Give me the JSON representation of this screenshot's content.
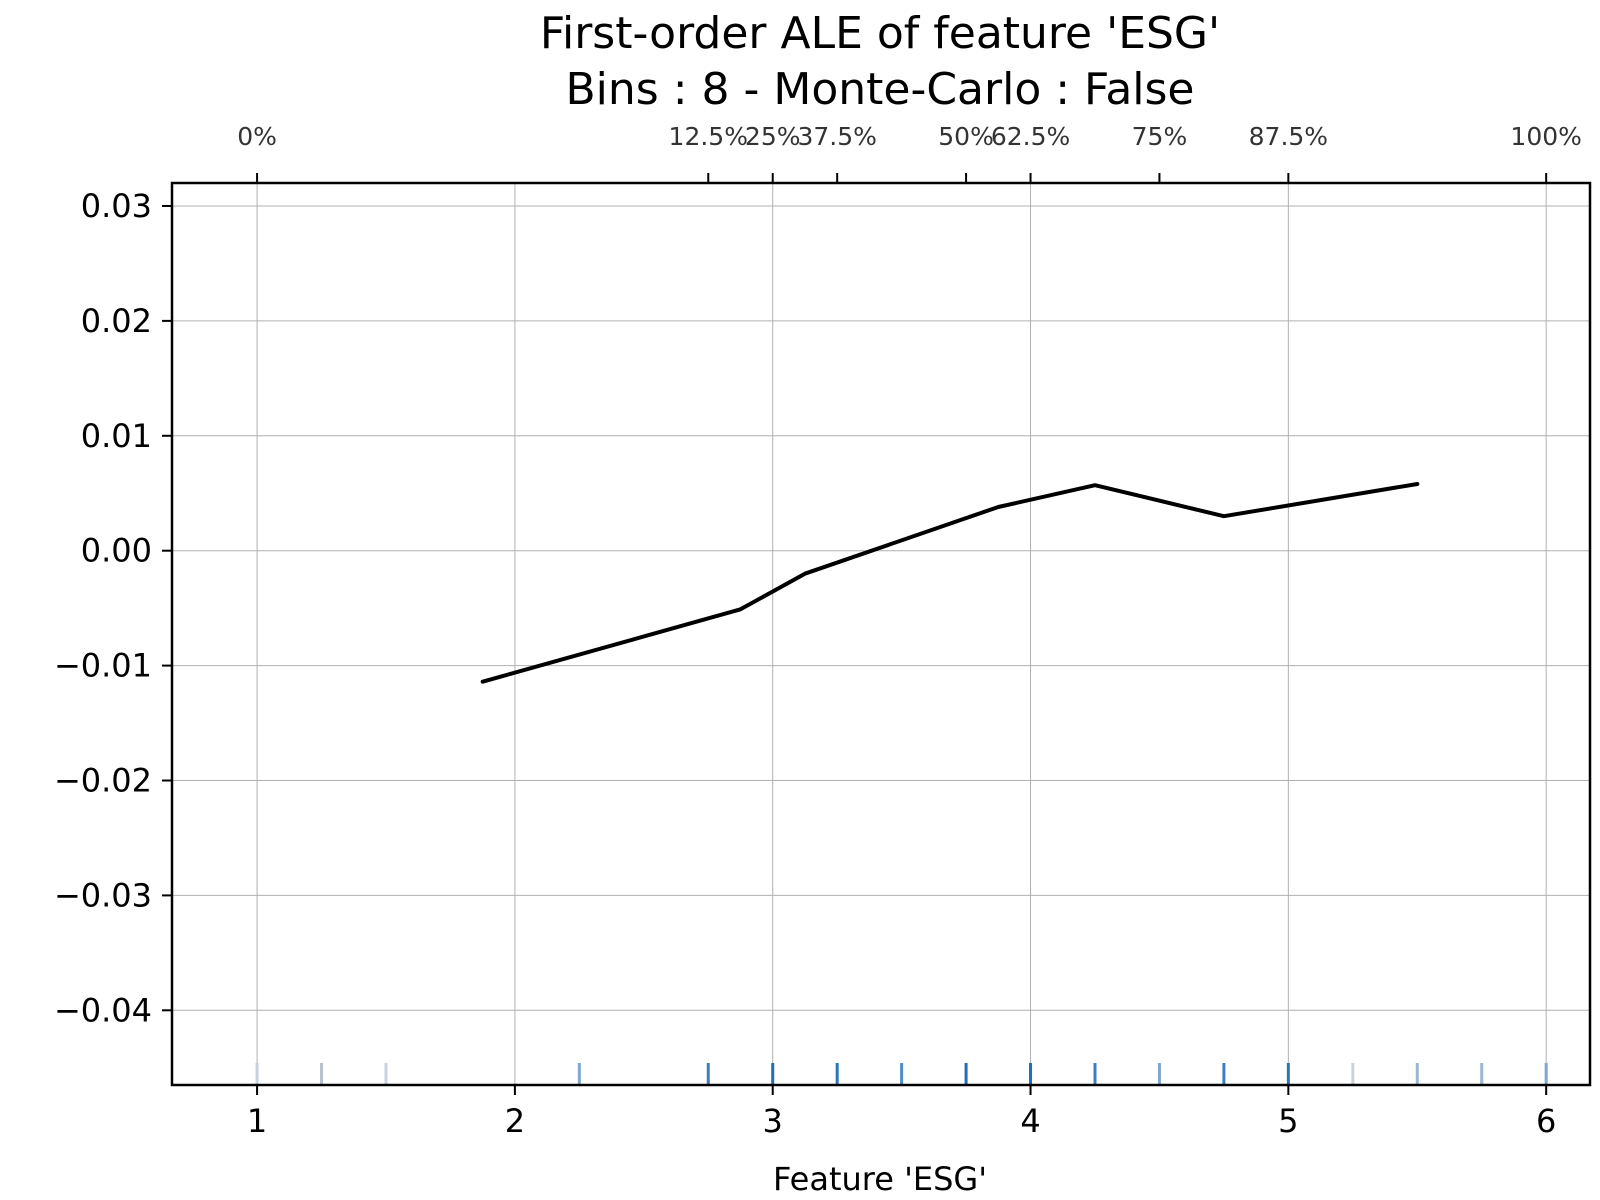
{
  "chart_data": {
    "type": "line",
    "title": "First-order ALE of feature 'ESG'",
    "subtitle": "Bins : 8 - Monte-Carlo : False",
    "xlabel": "Feature 'ESG'",
    "ylabel": "",
    "xlim": [
      0.67,
      6.17
    ],
    "ylim": [
      -0.0465,
      0.032
    ],
    "grid": true,
    "x_ticks": [
      {
        "value": 1,
        "label": "1"
      },
      {
        "value": 2,
        "label": "2"
      },
      {
        "value": 3,
        "label": "3"
      },
      {
        "value": 4,
        "label": "4"
      },
      {
        "value": 5,
        "label": "5"
      },
      {
        "value": 6,
        "label": "6"
      }
    ],
    "y_ticks": [
      {
        "value": 0.03,
        "label": "0.03"
      },
      {
        "value": 0.02,
        "label": "0.02"
      },
      {
        "value": 0.01,
        "label": "0.01"
      },
      {
        "value": 0.0,
        "label": "0.00"
      },
      {
        "value": -0.01,
        "label": "−0.01"
      },
      {
        "value": -0.02,
        "label": "−0.02"
      },
      {
        "value": -0.03,
        "label": "−0.03"
      },
      {
        "value": -0.04,
        "label": "−0.04"
      }
    ],
    "quantile_ticks": [
      {
        "value": 1.0,
        "label": "0%"
      },
      {
        "value": 2.75,
        "label": "12.5%"
      },
      {
        "value": 3.0,
        "label": "25%"
      },
      {
        "value": 3.25,
        "label": "37.5%"
      },
      {
        "value": 3.75,
        "label": "50%"
      },
      {
        "value": 4.0,
        "label": "62.5%"
      },
      {
        "value": 4.5,
        "label": "75%"
      },
      {
        "value": 5.0,
        "label": "87.5%"
      },
      {
        "value": 6.0,
        "label": "100%"
      }
    ],
    "series": [
      {
        "x": [
          1.875,
          2.875,
          3.125,
          3.875,
          4.25,
          4.75,
          5.5
        ],
        "values": [
          -0.0114,
          -0.0051,
          -0.002,
          0.0038,
          0.0057,
          0.003,
          0.0058
        ],
        "color": "#000000"
      }
    ],
    "rug": [
      {
        "x": 1.0,
        "color": "#c8d2dc"
      },
      {
        "x": 1.25,
        "color": "#b8c2cc"
      },
      {
        "x": 1.5,
        "color": "#c8d2dc"
      },
      {
        "x": 2.25,
        "color": "#7fa8cc"
      },
      {
        "x": 2.75,
        "color": "#3b7fc0"
      },
      {
        "x": 3.0,
        "color": "#1f6fb8"
      },
      {
        "x": 3.25,
        "color": "#2a76bb"
      },
      {
        "x": 3.5,
        "color": "#4e8cc4"
      },
      {
        "x": 3.75,
        "color": "#1f6fb8"
      },
      {
        "x": 4.0,
        "color": "#1f6fb8"
      },
      {
        "x": 4.25,
        "color": "#3b7fc0"
      },
      {
        "x": 4.5,
        "color": "#7fa8cc"
      },
      {
        "x": 4.75,
        "color": "#3b7fc0"
      },
      {
        "x": 5.0,
        "color": "#2a76bb"
      },
      {
        "x": 5.25,
        "color": "#c8d2dc"
      },
      {
        "x": 5.5,
        "color": "#9ab6d0"
      },
      {
        "x": 5.75,
        "color": "#9ab6d0"
      },
      {
        "x": 6.0,
        "color": "#7fa8cc"
      }
    ]
  }
}
